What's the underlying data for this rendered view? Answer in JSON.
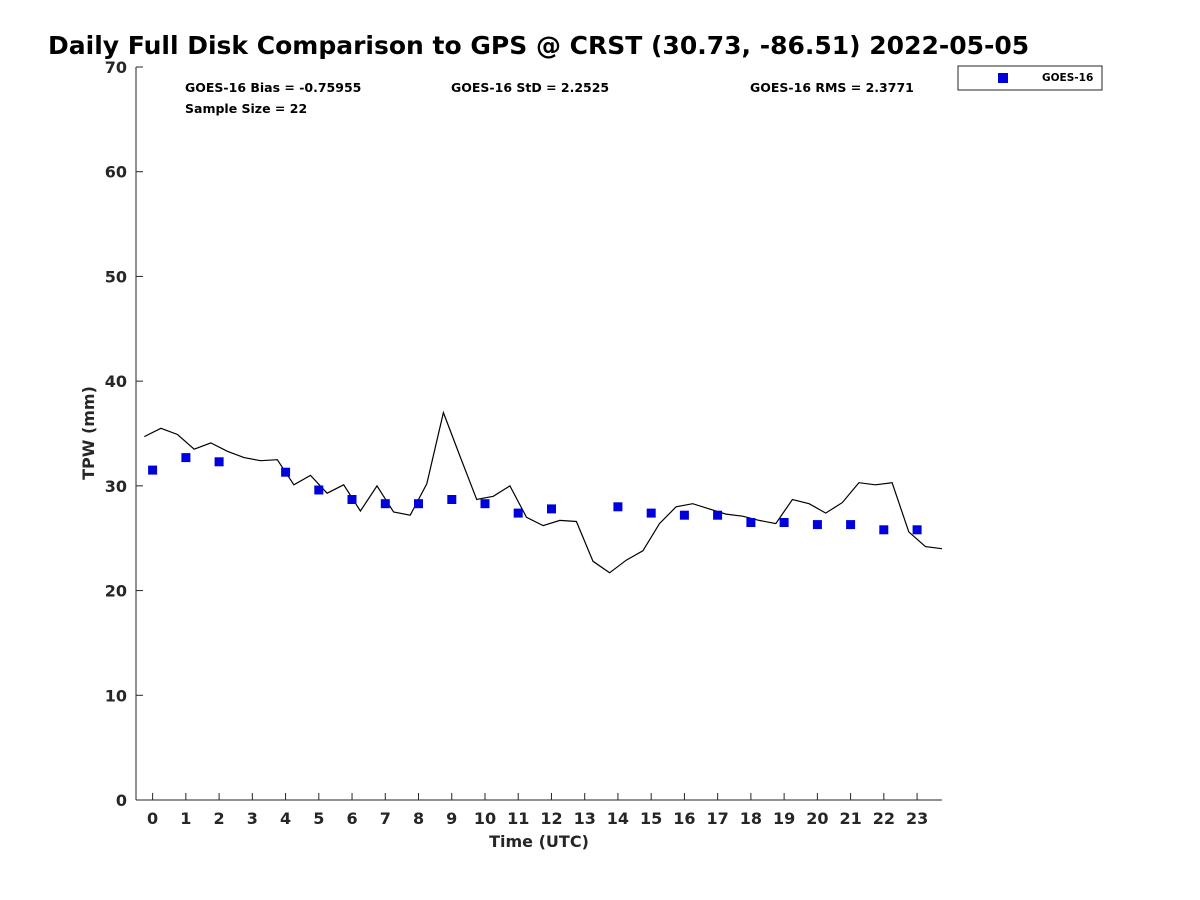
{
  "chart_data": {
    "type": "scatter",
    "title": "Daily Full Disk Comparison to GPS @ CRST (30.73, -86.51) 2022-05-05",
    "xlabel": "Time (UTC)",
    "ylabel": "TPW (mm)",
    "xlim": [
      -0.5,
      23.75
    ],
    "ylim": [
      0,
      70
    ],
    "xticks": [
      0,
      1,
      2,
      3,
      4,
      5,
      6,
      7,
      8,
      9,
      10,
      11,
      12,
      13,
      14,
      15,
      16,
      17,
      18,
      19,
      20,
      21,
      22,
      23
    ],
    "yticks": [
      0,
      10,
      20,
      30,
      40,
      50,
      60,
      70
    ],
    "grid": false,
    "legend_position": "top-right",
    "stats": {
      "bias": "GOES-16 Bias = -0.75955",
      "std": "GOES-16 StD = 2.2525",
      "rms": "GOES-16 RMS = 2.3771",
      "sample_size": "Sample Size = 22"
    },
    "series": [
      {
        "name": "GOES-16",
        "kind": "scatter",
        "marker": "square",
        "color": "#0000dd",
        "x": [
          0,
          1,
          2,
          4,
          5,
          6,
          7,
          8,
          9,
          10,
          11,
          12,
          14,
          15,
          16,
          17,
          18,
          19,
          20,
          21,
          22,
          23
        ],
        "y": [
          31.5,
          32.7,
          32.3,
          31.3,
          29.6,
          28.7,
          28.3,
          28.3,
          28.7,
          28.3,
          27.4,
          27.8,
          28.0,
          27.4,
          27.2,
          27.2,
          26.5,
          26.5,
          26.3,
          26.3,
          25.8,
          25.8
        ]
      },
      {
        "kind": "line",
        "color": "#000000",
        "x": [
          -0.25,
          0.25,
          0.75,
          1.25,
          1.75,
          2.25,
          2.75,
          3.25,
          3.75,
          4.25,
          4.75,
          5.25,
          5.75,
          6.25,
          6.75,
          7.25,
          7.75,
          8.25,
          8.75,
          9.25,
          9.75,
          10.25,
          10.75,
          11.25,
          11.75,
          12.25,
          12.75,
          13.25,
          13.75,
          14.25,
          14.75,
          15.25,
          15.75,
          16.25,
          16.75,
          17.25,
          17.75,
          18.25,
          18.75,
          19.25,
          19.75,
          20.25,
          20.75,
          21.25,
          21.75,
          22.25,
          22.75,
          23.25,
          23.75
        ],
        "y": [
          34.7,
          35.5,
          34.9,
          33.5,
          34.1,
          33.3,
          32.7,
          32.4,
          32.5,
          30.1,
          31.0,
          29.3,
          30.1,
          27.6,
          30.0,
          27.5,
          27.2,
          30.2,
          37.0,
          32.8,
          28.7,
          29.0,
          30.0,
          27.0,
          26.2,
          26.7,
          26.6,
          22.8,
          21.7,
          22.9,
          23.8,
          26.4,
          28.0,
          28.3,
          27.8,
          27.3,
          27.1,
          26.7,
          26.4,
          28.7,
          28.3,
          27.4,
          28.4,
          30.3,
          30.1,
          30.3,
          25.6,
          24.2,
          24.0
        ]
      }
    ]
  }
}
